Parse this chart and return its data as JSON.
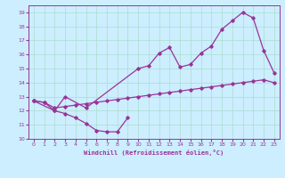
{
  "xlabel": "Windchill (Refroidissement éolien,°C)",
  "background_color": "#cceeff",
  "grid_color": "#aaddcc",
  "line_color": "#993399",
  "xlim": [
    -0.5,
    23.5
  ],
  "ylim": [
    10,
    19.5
  ],
  "yticks": [
    10,
    11,
    12,
    13,
    14,
    15,
    16,
    17,
    18,
    19
  ],
  "xticks": [
    0,
    1,
    2,
    3,
    4,
    5,
    6,
    7,
    8,
    9,
    10,
    11,
    12,
    13,
    14,
    15,
    16,
    17,
    18,
    19,
    20,
    21,
    22,
    23
  ],
  "s1x": [
    0,
    1,
    2,
    3,
    4,
    5,
    6,
    7,
    8,
    9
  ],
  "s1y": [
    12.7,
    12.6,
    12.0,
    11.8,
    11.5,
    11.1,
    10.6,
    10.5,
    10.5,
    11.5
  ],
  "s2x": [
    0,
    1,
    2,
    3,
    4,
    5,
    6,
    7,
    8,
    9,
    10,
    11,
    12,
    13,
    14,
    15,
    16,
    17,
    18,
    19,
    20,
    21,
    22,
    23
  ],
  "s2y": [
    12.7,
    12.6,
    12.2,
    12.3,
    12.4,
    12.5,
    12.6,
    12.7,
    12.8,
    12.9,
    13.0,
    13.1,
    13.2,
    13.3,
    13.4,
    13.5,
    13.6,
    13.7,
    13.8,
    13.9,
    14.0,
    14.1,
    14.2,
    14.0
  ],
  "s3x": [
    0,
    2,
    3,
    5,
    10,
    11,
    12,
    13,
    14,
    15,
    16,
    17,
    18,
    19,
    20,
    21,
    22,
    23
  ],
  "s3y": [
    12.7,
    12.0,
    13.0,
    12.2,
    15.0,
    15.2,
    16.1,
    16.5,
    15.1,
    15.3,
    16.1,
    16.6,
    17.8,
    18.4,
    19.0,
    18.6,
    16.3,
    14.7
  ]
}
